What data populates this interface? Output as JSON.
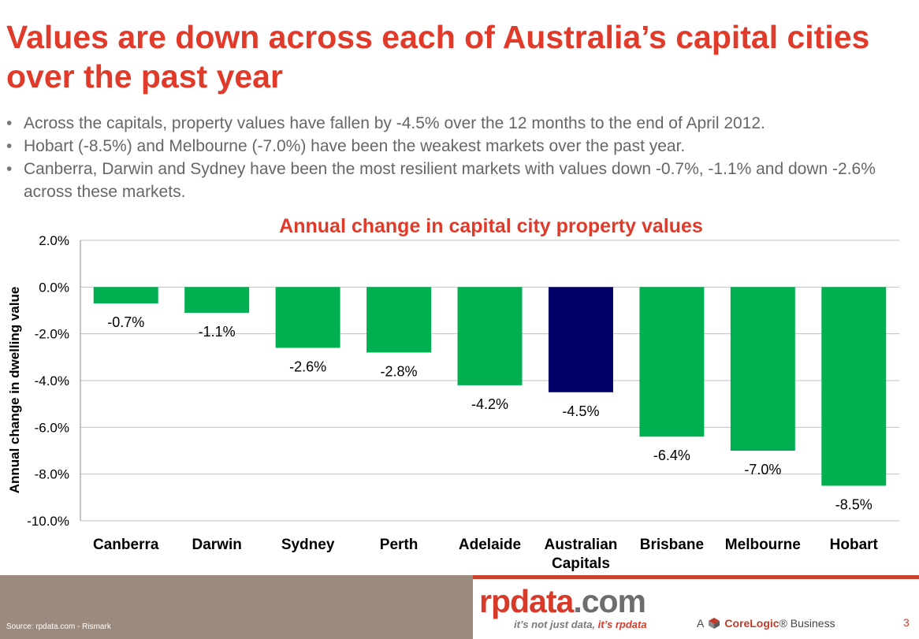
{
  "slide": {
    "title": "Values are down across each of Australia’s capital cities over the past year",
    "bullets": [
      "Across the capitals, property values have fallen by -4.5% over the 12 months to the end of April 2012.",
      "Hobart (-8.5%) and Melbourne (-7.0%) have been the weakest markets over the past year.",
      "Canberra, Darwin and Sydney have been the most resilient markets with values down -0.7%, -1.1% and down -2.6% across these markets."
    ],
    "page_number": "3"
  },
  "footer": {
    "source": "Source:  rpdata.com - Rismark",
    "logo_main": "rpdata",
    "logo_suffix": ".com",
    "tagline_a": "it’s not just data, ",
    "tagline_b": "it’s rpdata",
    "corelogic_prefix": "A",
    "corelogic_name": "CoreLogic",
    "corelogic_suffix": "® Business"
  },
  "colors": {
    "title": "#e03a2a",
    "bar_default": "#00b050",
    "bar_highlight": "#000066",
    "grid": "#c0c0c0",
    "footer_brown": "#9b8b7e",
    "brand_red": "#d83a2a"
  },
  "chart_data": {
    "type": "bar",
    "title": "Annual change in capital city property values",
    "xlabel": "",
    "ylabel": "Annual change in dwelling value",
    "ylim": [
      -10,
      2
    ],
    "yticks": [
      2,
      0,
      -2,
      -4,
      -6,
      -8,
      -10
    ],
    "ytick_labels": [
      "2.0%",
      "0.0%",
      "-2.0%",
      "-4.0%",
      "-6.0%",
      "-8.0%",
      "-10.0%"
    ],
    "grid": true,
    "categories": [
      [
        "Canberra"
      ],
      [
        "Darwin"
      ],
      [
        "Sydney"
      ],
      [
        "Perth"
      ],
      [
        "Adelaide"
      ],
      [
        "Australian",
        "Capitals"
      ],
      [
        "Brisbane"
      ],
      [
        "Melbourne"
      ],
      [
        "Hobart"
      ]
    ],
    "values": [
      -0.7,
      -1.1,
      -2.6,
      -2.8,
      -4.2,
      -4.5,
      -6.4,
      -7.0,
      -8.5
    ],
    "data_labels": [
      "-0.7%",
      "-1.1%",
      "-2.6%",
      "-2.8%",
      "-4.2%",
      "-4.5%",
      "-6.4%",
      "-7.0%",
      "-8.5%"
    ],
    "highlight_index": 5
  }
}
